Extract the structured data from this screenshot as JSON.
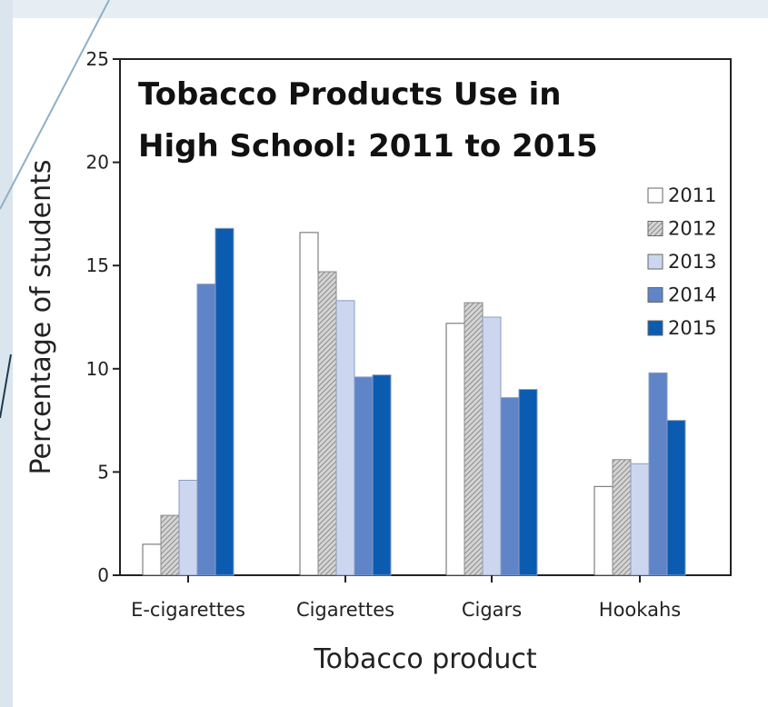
{
  "chart_data": {
    "type": "bar",
    "title": "Tobacco Products Use in High School: 2011 to 2015",
    "title_lines": [
      "Tobacco Products Use in",
      "High School: 2011 to 2015"
    ],
    "xlabel": "Tobacco product",
    "ylabel": "Percentage of students",
    "categories": [
      "E-cigarettes",
      "Cigarettes",
      "Cigars",
      "Hookahs"
    ],
    "ylim": [
      0,
      25
    ],
    "yticks": [
      "0",
      "5",
      "10",
      "15",
      "20",
      "25"
    ],
    "grid": false,
    "legend_position": "right",
    "series": [
      {
        "name": "2011",
        "values": [
          1.5,
          16.6,
          12.2,
          4.3
        ],
        "fill": "#ffffff",
        "pattern": "none"
      },
      {
        "name": "2012",
        "values": [
          2.9,
          14.7,
          13.2,
          5.6
        ],
        "fill": "#d0d0d0",
        "pattern": "hatch"
      },
      {
        "name": "2013",
        "values": [
          4.6,
          13.3,
          12.5,
          5.4
        ],
        "fill": "#ccd7ef",
        "pattern": "none"
      },
      {
        "name": "2014",
        "values": [
          14.1,
          9.6,
          8.6,
          9.8
        ],
        "fill": "#5f84c8",
        "pattern": "none"
      },
      {
        "name": "2015",
        "values": [
          16.8,
          9.7,
          9.0,
          7.5
        ],
        "fill": "#0b5cb0",
        "pattern": "none"
      }
    ]
  }
}
